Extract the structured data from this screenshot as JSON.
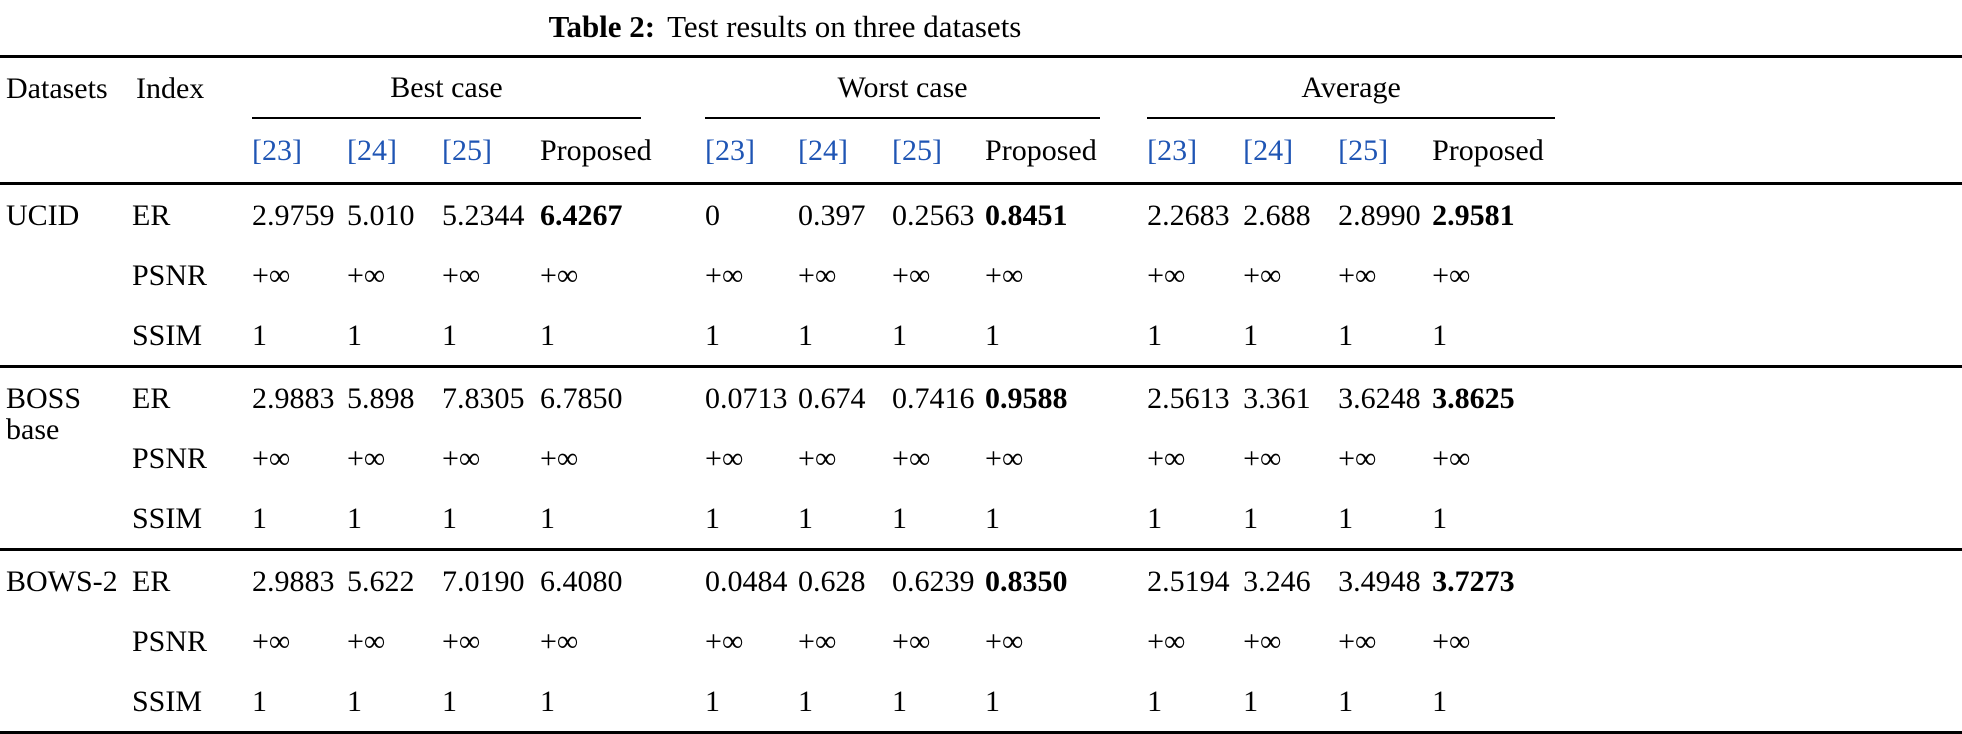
{
  "caption": {
    "label": "Table 2:",
    "text": "Test results on three datasets"
  },
  "headers": {
    "datasets": "Datasets",
    "index": "Index"
  },
  "groups": [
    {
      "label": "Best case"
    },
    {
      "label": "Worst case"
    },
    {
      "label": "Average"
    }
  ],
  "subheaders": [
    {
      "text": "[23]",
      "citation": true
    },
    {
      "text": "[24]",
      "citation": true
    },
    {
      "text": "[25]",
      "citation": true
    },
    {
      "text": "Proposed",
      "citation": false
    },
    {
      "text": "[23]",
      "citation": true
    },
    {
      "text": "[24]",
      "citation": true
    },
    {
      "text": "[25]",
      "citation": true
    },
    {
      "text": "Proposed",
      "citation": false
    },
    {
      "text": "[23]",
      "citation": true
    },
    {
      "text": "[24]",
      "citation": true
    },
    {
      "text": "[25]",
      "citation": true
    },
    {
      "text": "Proposed",
      "citation": false
    }
  ],
  "colors": {
    "citation_blue": "#1f55b4",
    "text": "#000000",
    "rule": "#000000",
    "background": "#ffffff"
  },
  "sections": [
    {
      "dataset": "UCID",
      "rows": [
        {
          "index": "ER",
          "values": [
            "2.9759",
            "5.010",
            "5.2344",
            "6.4267",
            "0",
            "0.397",
            "0.2563",
            "0.8451",
            "2.2683",
            "2.688",
            "2.8990",
            "2.9581"
          ],
          "bold": [
            3,
            7,
            11
          ]
        },
        {
          "index": "PSNR",
          "values": [
            "+∞",
            "+∞",
            "+∞",
            "+∞",
            "+∞",
            "+∞",
            "+∞",
            "+∞",
            "+∞",
            "+∞",
            "+∞",
            "+∞"
          ],
          "bold": []
        },
        {
          "index": "SSIM",
          "values": [
            "1",
            "1",
            "1",
            "1",
            "1",
            "1",
            "1",
            "1",
            "1",
            "1",
            "1",
            "1"
          ],
          "bold": []
        }
      ]
    },
    {
      "dataset": "BOSS\nbase",
      "rows": [
        {
          "index": "ER",
          "values": [
            "2.9883",
            "5.898",
            "7.8305",
            "6.7850",
            "0.0713",
            "0.674",
            "0.7416",
            "0.9588",
            "2.5613",
            "3.361",
            "3.6248",
            "3.8625"
          ],
          "bold": [
            7,
            11
          ]
        },
        {
          "index": "PSNR",
          "values": [
            "+∞",
            "+∞",
            "+∞",
            "+∞",
            "+∞",
            "+∞",
            "+∞",
            "+∞",
            "+∞",
            "+∞",
            "+∞",
            "+∞"
          ],
          "bold": []
        },
        {
          "index": "SSIM",
          "values": [
            "1",
            "1",
            "1",
            "1",
            "1",
            "1",
            "1",
            "1",
            "1",
            "1",
            "1",
            "1"
          ],
          "bold": []
        }
      ]
    },
    {
      "dataset": "BOWS-2",
      "rows": [
        {
          "index": "ER",
          "values": [
            "2.9883",
            "5.622",
            "7.0190",
            "6.4080",
            "0.0484",
            "0.628",
            "0.6239",
            "0.8350",
            "2.5194",
            "3.246",
            "3.4948",
            "3.7273"
          ],
          "bold": [
            7,
            11
          ]
        },
        {
          "index": "PSNR",
          "values": [
            "+∞",
            "+∞",
            "+∞",
            "+∞",
            "+∞",
            "+∞",
            "+∞",
            "+∞",
            "+∞",
            "+∞",
            "+∞",
            "+∞"
          ],
          "bold": []
        },
        {
          "index": "SSIM",
          "values": [
            "1",
            "1",
            "1",
            "1",
            "1",
            "1",
            "1",
            "1",
            "1",
            "1",
            "1",
            "1"
          ],
          "bold": []
        }
      ]
    }
  ]
}
